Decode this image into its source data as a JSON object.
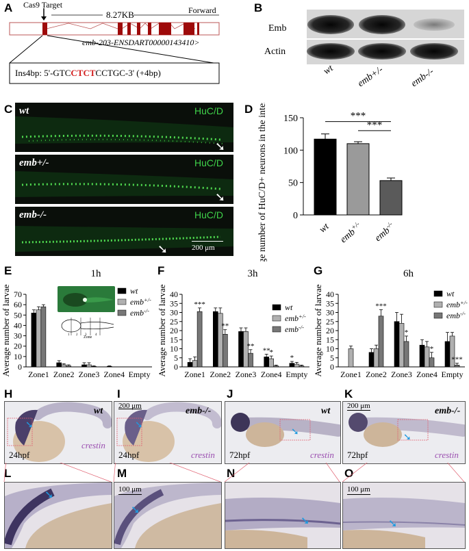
{
  "panels": [
    "A",
    "B",
    "C",
    "D",
    "E",
    "F",
    "G",
    "H",
    "I",
    "J",
    "K",
    "L",
    "M",
    "N",
    "O"
  ],
  "gene_map": {
    "target_label": "Cas9 Target",
    "length": "8.27KB",
    "strand": "Forward",
    "transcript": "emb-203-ENSDART00000143410>",
    "insertion_prefix": "Ins4bp: 5'-GTC",
    "insertion_highlight": "CTCT",
    "insertion_suffix": "CCTGC-3' (+4bp)"
  },
  "western": {
    "rows": [
      "Emb",
      "Actin"
    ],
    "lanes": [
      "wt",
      "emb+/-",
      "emb-/-"
    ]
  },
  "fluorescence": {
    "marker": "HuC/D",
    "genotypes": [
      "wt",
      "emb+/-",
      "emb-/-"
    ],
    "scale_bar": "200 μm"
  },
  "chart_data": [
    {
      "type": "bar",
      "panel": "D",
      "ylabel": "Average number of HuC/D+ neurons in the intestinal tract",
      "categories": [
        "wt",
        "emb+/-",
        "emb-/-"
      ],
      "values": [
        117,
        110,
        53
      ],
      "errors": [
        8,
        3,
        4
      ],
      "colors": [
        "#000000",
        "#9a9a9a",
        "#5a5a5a"
      ],
      "ylim": [
        0,
        150
      ],
      "yticks": [
        0,
        50,
        100,
        150
      ],
      "significance": [
        "***",
        "***"
      ]
    },
    {
      "type": "bar",
      "panel": "E",
      "title": "1h",
      "ylabel": "Average number of larvae",
      "categories": [
        "Zone1",
        "Zone2",
        "Zone3",
        "Zone4",
        "Empty"
      ],
      "ylim": [
        0,
        70
      ],
      "yticks": [
        0,
        10,
        20,
        30,
        40,
        50,
        60,
        70
      ],
      "series": [
        {
          "name": "wt",
          "values": [
            52,
            4,
            2,
            0.5,
            0
          ],
          "errors": [
            3,
            2,
            2,
            0.5,
            0
          ]
        },
        {
          "name": "emb+/-",
          "values": [
            55,
            2,
            2,
            0,
            0
          ],
          "errors": [
            3,
            1,
            2,
            0,
            0
          ]
        },
        {
          "name": "emb-/-",
          "values": [
            58,
            1,
            0.5,
            0,
            0
          ],
          "errors": [
            2,
            1,
            0.5,
            0,
            0
          ]
        }
      ],
      "inset_zone_label": "Zone"
    },
    {
      "type": "bar",
      "panel": "F",
      "title": "3h",
      "ylabel": "Average number of larvae",
      "categories": [
        "Zone1",
        "Zone2",
        "Zone3",
        "Zone4",
        "Empty"
      ],
      "ylim": [
        0,
        40
      ],
      "yticks": [
        0,
        5,
        10,
        15,
        20,
        25,
        30,
        35,
        40
      ],
      "series": [
        {
          "name": "wt",
          "values": [
            2.5,
            30.5,
            19.5,
            5.5,
            2
          ],
          "errors": [
            2,
            2,
            2,
            1.5,
            1
          ],
          "sig": [
            "",
            "",
            "",
            "**",
            "*"
          ]
        },
        {
          "name": "emb+/-",
          "values": [
            3.5,
            29.5,
            19.5,
            4.5,
            1.5
          ],
          "errors": [
            2,
            3,
            2,
            1.5,
            1
          ],
          "sig": [
            "",
            "",
            "",
            "*",
            ""
          ]
        },
        {
          "name": "emb-/-",
          "values": [
            30.5,
            18,
            7.5,
            0.5,
            0.5
          ],
          "errors": [
            2,
            2.5,
            2,
            0.5,
            0.5
          ],
          "sig": [
            "***",
            "**",
            "**",
            "",
            ""
          ]
        }
      ]
    },
    {
      "type": "bar",
      "panel": "G",
      "title": "6h",
      "ylabel": "Average number of larvae",
      "categories": [
        "Zone1",
        "Zone2",
        "Zone3",
        "Zone4",
        "Empty"
      ],
      "ylim": [
        0,
        40
      ],
      "yticks": [
        0,
        5,
        10,
        15,
        20,
        25,
        30,
        35,
        40
      ],
      "series": [
        {
          "name": "wt",
          "values": [
            0,
            8,
            25,
            12,
            14
          ],
          "errors": [
            0,
            2,
            5,
            3,
            5
          ],
          "sig": [
            "",
            "",
            "",
            "",
            ""
          ]
        },
        {
          "name": "emb+/-",
          "values": [
            10,
            10,
            24,
            11,
            17
          ],
          "errors": [
            1.5,
            2,
            5,
            3,
            2
          ],
          "sig": [
            "",
            "",
            "",
            "",
            ""
          ]
        },
        {
          "name": "emb-/-",
          "values": [
            0,
            28,
            14,
            5,
            1
          ],
          "errors": [
            0,
            3.5,
            3,
            3,
            1
          ],
          "sig": [
            "",
            "***",
            "*",
            "*",
            "***"
          ]
        }
      ]
    }
  ],
  "legend_names": [
    "wt",
    "emb+/-",
    "emb-/-"
  ],
  "legend_colors": [
    "#000000",
    "#b0b0b0",
    "#777777"
  ],
  "ish": {
    "probe": "crestin",
    "top": [
      {
        "geno": "wt",
        "stage": "24hpf",
        "scale": ""
      },
      {
        "geno": "emb-/-",
        "stage": "24hpf",
        "scale": "200 μm"
      },
      {
        "geno": "wt",
        "stage": "72hpf",
        "scale": ""
      },
      {
        "geno": "emb-/-",
        "stage": "72hpf",
        "scale": "200 μm"
      }
    ],
    "zoom_scales": [
      "",
      "100 μm",
      "",
      "100 μm"
    ]
  }
}
